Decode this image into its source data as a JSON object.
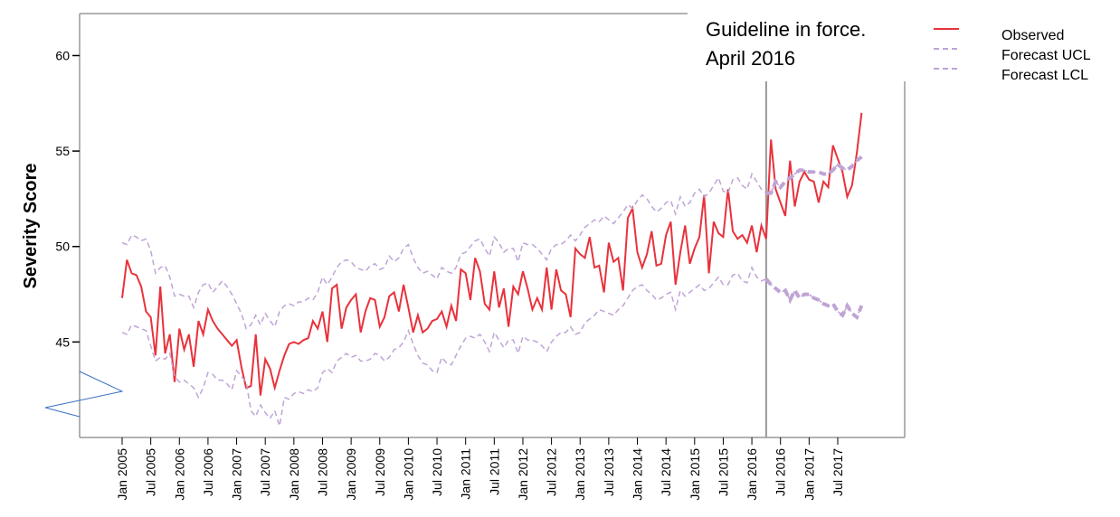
{
  "chart_data": {
    "type": "line",
    "y_label": "Severity Score",
    "annotation": {
      "lines": [
        "Guideline in force.",
        "April 2016"
      ],
      "x": 135
    },
    "categories": [
      "Jan 2005",
      null,
      null,
      null,
      null,
      null,
      "Jul 2005",
      null,
      null,
      null,
      null,
      null,
      "Jan 2006",
      null,
      null,
      null,
      null,
      null,
      "Jul 2006",
      null,
      null,
      null,
      null,
      null,
      "Jan 2007",
      null,
      null,
      null,
      null,
      null,
      "Jul 2007",
      null,
      null,
      null,
      null,
      null,
      "Jan 2008",
      null,
      null,
      null,
      null,
      null,
      "Jul 2008",
      null,
      null,
      null,
      null,
      null,
      "Jan 2009",
      null,
      null,
      null,
      null,
      null,
      "Jul 2009",
      null,
      null,
      null,
      null,
      null,
      "Jan 2010",
      null,
      null,
      null,
      null,
      null,
      "Jul 2010",
      null,
      null,
      null,
      null,
      null,
      "Jan 2011",
      null,
      null,
      null,
      null,
      null,
      "Jul 2011",
      null,
      null,
      null,
      null,
      null,
      "Jan 2012",
      null,
      null,
      null,
      null,
      null,
      "Jul 2012",
      null,
      null,
      null,
      null,
      null,
      "Jan 2013",
      null,
      null,
      null,
      null,
      null,
      "Jul 2013",
      null,
      null,
      null,
      null,
      null,
      "Jan 2014",
      null,
      null,
      null,
      null,
      null,
      "Jul 2014",
      null,
      null,
      null,
      null,
      null,
      "Jan 2015",
      null,
      null,
      null,
      null,
      null,
      "Jul 2015",
      null,
      null,
      null,
      null,
      null,
      "Jan 2016",
      null,
      null,
      null,
      null,
      null,
      "Jul 2016",
      null,
      null,
      null,
      null,
      null,
      "Jan 2017",
      null,
      null,
      null,
      null,
      null,
      "Jul 2017",
      null,
      null,
      null,
      null,
      null
    ],
    "series": [
      {
        "name": "Observed",
        "color": "#e8323c",
        "dash": false,
        "values": [
          47.3,
          49.3,
          48.6,
          48.5,
          47.9,
          46.6,
          46.3,
          44.3,
          47.9,
          44.4,
          45.4,
          42.9,
          45.7,
          44.6,
          45.4,
          43.7,
          46.1,
          45.4,
          46.7,
          46.1,
          45.7,
          45.4,
          45.1,
          44.8,
          45.1,
          43.7,
          42.6,
          42.7,
          45.4,
          42.2,
          44.1,
          43.6,
          42.6,
          43.5,
          44.3,
          44.9,
          45.0,
          44.9,
          45.1,
          45.2,
          46.1,
          45.7,
          46.6,
          45.0,
          47.8,
          48.0,
          45.7,
          46.8,
          47.2,
          47.5,
          45.5,
          46.6,
          47.3,
          47.2,
          45.8,
          46.3,
          47.4,
          47.6,
          46.6,
          48.0,
          46.8,
          45.5,
          46.4,
          45.5,
          45.7,
          46.1,
          46.2,
          46.6,
          45.8,
          46.9,
          46.1,
          48.8,
          48.6,
          47.2,
          49.4,
          48.7,
          47.0,
          46.7,
          48.7,
          46.8,
          47.8,
          45.8,
          47.9,
          47.5,
          48.7,
          47.8,
          46.7,
          47.3,
          46.7,
          48.9,
          46.7,
          48.8,
          47.7,
          47.5,
          46.3,
          49.9,
          49.6,
          49.4,
          50.5,
          48.9,
          49.0,
          47.6,
          50.2,
          49.2,
          49.4,
          47.7,
          51.5,
          52.0,
          49.7,
          48.9,
          49.6,
          50.8,
          49.0,
          49.1,
          50.6,
          51.3,
          48.0,
          49.7,
          51.1,
          49.1,
          49.9,
          50.5,
          52.7,
          48.6,
          51.3,
          50.7,
          50.5,
          53.0,
          50.8,
          50.4,
          50.6,
          50.2,
          51.1,
          49.7,
          51.1,
          50.4,
          55.6,
          53.0,
          52.3,
          51.6,
          54.5,
          52.1,
          53.4,
          53.9,
          53.5,
          53.4,
          52.3,
          53.4,
          53.1,
          55.3,
          54.6,
          53.9,
          52.6,
          53.2,
          54.9,
          57.0
        ]
      },
      {
        "name": "Forecast UCL",
        "color": "#bfa4d6",
        "dash": true,
        "values": [
          50.2,
          50.1,
          50.6,
          50.5,
          50.3,
          50.4,
          49.8,
          48.6,
          48.9,
          49.0,
          48.4,
          47.4,
          47.5,
          47.4,
          47.4,
          46.8,
          47.6,
          48.0,
          48.1,
          47.6,
          47.9,
          48.2,
          47.9,
          47.5,
          47.0,
          46.5,
          45.7,
          45.9,
          46.4,
          45.9,
          46.5,
          46.1,
          45.8,
          46.6,
          46.9,
          47.0,
          46.9,
          47.1,
          47.1,
          47.3,
          47.2,
          47.6,
          48.4,
          48.0,
          48.4,
          48.9,
          49.2,
          49.3,
          49.2,
          48.9,
          48.8,
          48.7,
          49.0,
          49.1,
          48.8,
          48.9,
          49.5,
          49.2,
          49.4,
          49.9,
          50.1,
          49.4,
          48.9,
          48.6,
          48.7,
          48.5,
          48.3,
          48.9,
          48.7,
          48.6,
          48.9,
          49.6,
          49.7,
          50.0,
          50.3,
          50.4,
          49.9,
          49.5,
          50.5,
          50.2,
          49.7,
          49.9,
          49.9,
          49.2,
          50.2,
          50.1,
          50.1,
          49.9,
          49.6,
          49.3,
          49.9,
          50.1,
          50.1,
          50.3,
          50.6,
          50.3,
          50.6,
          51.0,
          51.2,
          51.4,
          51.3,
          51.6,
          51.4,
          51.2,
          51.5,
          51.8,
          52.2,
          52.0,
          52.4,
          52.7,
          52.5,
          52.1,
          51.8,
          52.0,
          52.3,
          52.4,
          51.7,
          52.6,
          52.1,
          52.3,
          52.8,
          53.0,
          52.6,
          52.8,
          53.2,
          53.6,
          52.9,
          52.8,
          53.5,
          53.6,
          53.2,
          53.0,
          53.8,
          53.4,
          53.0,
          52.8,
          52.8,
          53.4,
          53.1,
          53.4,
          53.6,
          53.8,
          54.0,
          54.0,
          53.9,
          53.9,
          53.9,
          53.8,
          53.8,
          54.0,
          54.3,
          54.1,
          54.0,
          54.2,
          54.5,
          54.7
        ]
      },
      {
        "name": "Forecast LCL",
        "color": "#bfa4d6",
        "dash": true,
        "values": [
          45.5,
          45.4,
          45.9,
          45.8,
          45.7,
          45.6,
          44.8,
          44.0,
          44.2,
          44.1,
          44.4,
          43.2,
          42.9,
          43.0,
          42.8,
          42.6,
          42.1,
          42.6,
          43.4,
          43.3,
          43.0,
          43.0,
          42.8,
          42.5,
          43.5,
          43.2,
          42.9,
          41.4,
          41.1,
          41.7,
          41.3,
          41.0,
          41.4,
          40.6,
          42.1,
          42.0,
          42.3,
          42.4,
          42.3,
          42.5,
          42.4,
          42.6,
          43.4,
          43.6,
          43.4,
          44.0,
          44.2,
          44.4,
          44.2,
          44.3,
          44.0,
          44.0,
          44.1,
          44.4,
          44.3,
          44.0,
          44.2,
          44.6,
          44.7,
          45.0,
          45.6,
          44.9,
          44.3,
          43.9,
          43.8,
          43.5,
          43.4,
          44.2,
          43.9,
          43.8,
          44.3,
          44.8,
          45.2,
          45.3,
          45.2,
          45.4,
          45.0,
          44.5,
          45.5,
          45.1,
          44.7,
          45.1,
          45.1,
          44.4,
          45.3,
          45.1,
          45.1,
          45.0,
          44.8,
          44.5,
          45.0,
          45.3,
          45.5,
          45.5,
          45.8,
          45.4,
          45.5,
          46.0,
          46.2,
          46.4,
          46.7,
          46.6,
          46.5,
          46.4,
          46.7,
          46.9,
          47.3,
          47.7,
          47.9,
          48.0,
          47.7,
          47.5,
          47.2,
          47.3,
          47.5,
          47.6,
          46.7,
          47.7,
          47.4,
          47.6,
          47.8,
          48.0,
          47.7,
          47.8,
          48.1,
          48.4,
          48.0,
          48.0,
          48.5,
          48.6,
          48.2,
          48.1,
          48.9,
          48.4,
          48.2,
          48.3,
          48.0,
          47.8,
          47.6,
          47.7,
          47.2,
          47.7,
          47.3,
          47.5,
          47.5,
          47.3,
          47.2,
          47.0,
          46.9,
          47.0,
          46.6,
          46.4,
          46.9,
          46.5,
          46.3,
          46.9
        ]
      }
    ],
    "ylim": [
      40,
      62.2
    ],
    "yticks": [
      45,
      50,
      55,
      60
    ]
  }
}
